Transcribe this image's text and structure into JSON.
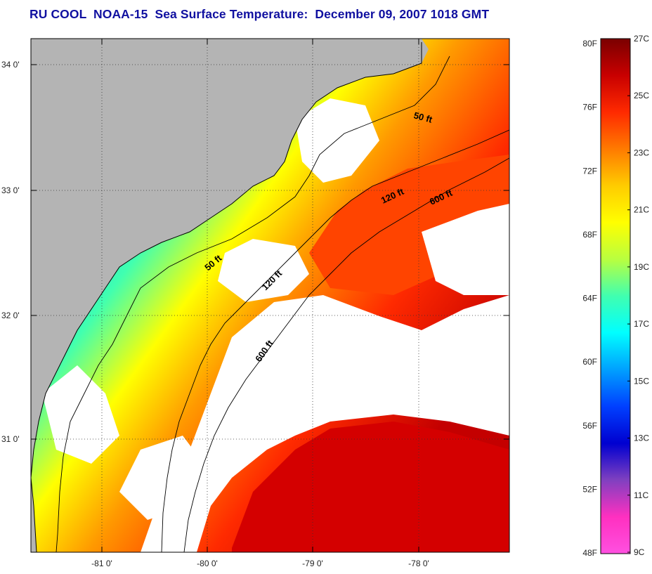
{
  "title": "RU COOL  NOAA-15  Sea Surface Temperature:  December 09, 2007 1018 GMT",
  "map": {
    "lat_labels": [
      "34 0'",
      "33 0'",
      "32 0'",
      "31 0'"
    ],
    "lon_labels": [
      "-81 0'",
      "-80 0'",
      "-79 0'",
      "-78 0'"
    ],
    "contour_labels": [
      "50 ft",
      "120 ft",
      "600 ft",
      "50 ft",
      "120 ft",
      "600 ft"
    ],
    "colors": {
      "land": "#b4b4b4",
      "cloud": "#ffffff",
      "coastline": "#000000"
    }
  },
  "colorbar": {
    "f_labels": [
      "80F",
      "76F",
      "72F",
      "68F",
      "64F",
      "60F",
      "56F",
      "52F",
      "48F"
    ],
    "c_labels": [
      "27C",
      "25C",
      "23C",
      "21C",
      "19C",
      "17C",
      "15C",
      "13C",
      "11C",
      "9C"
    ],
    "colors_top_to_bottom": [
      "#7a0000",
      "#c80000",
      "#ff2a00",
      "#ff7a00",
      "#ffcc00",
      "#ffff00",
      "#b8ff40",
      "#40ffb0",
      "#00ffff",
      "#00a0ff",
      "#0040ff",
      "#0000d0",
      "#8040c0",
      "#ff30c0",
      "#ff50e0"
    ]
  }
}
